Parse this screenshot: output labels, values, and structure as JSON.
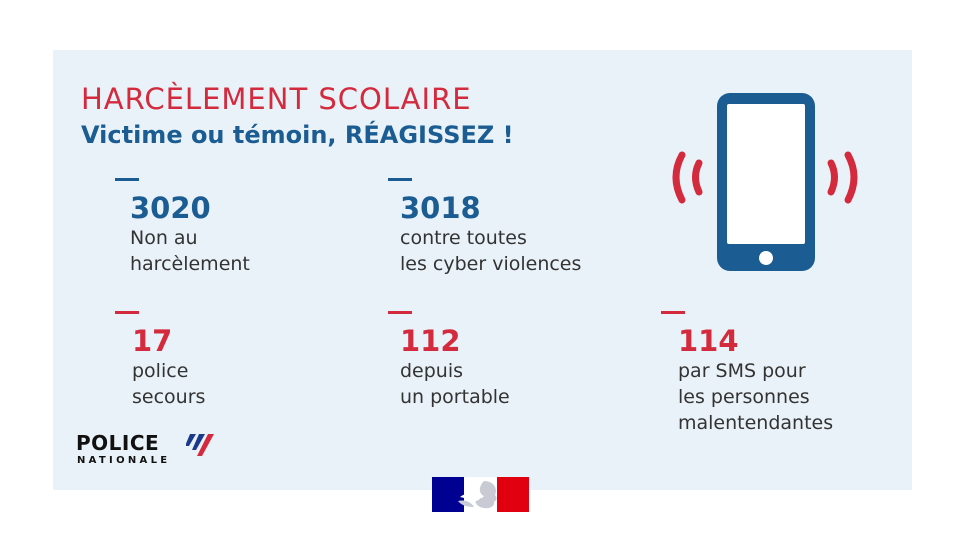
{
  "header": {
    "title": "HARCÈLEMENT SCOLAIRE",
    "subtitle": "Victime ou témoin, RÉAGISSEZ !"
  },
  "numbers": [
    {
      "number": "3020",
      "lines": [
        "Non au",
        "harcèlement"
      ],
      "color": "#1b5c92"
    },
    {
      "number": "3018",
      "lines": [
        "contre toutes",
        "les cyber violences"
      ],
      "color": "#1b5c92"
    },
    {
      "number": "17",
      "lines": [
        "police",
        "secours"
      ],
      "color": "#d42a3e"
    },
    {
      "number": "112",
      "lines": [
        "depuis",
        "un portable"
      ],
      "color": "#d42a3e"
    },
    {
      "number": "114",
      "lines": [
        "par SMS pour",
        "les personnes",
        "malentendantes"
      ],
      "color": "#d42a3e"
    }
  ],
  "logo": {
    "name": "POLICE",
    "subtitle": "NATIONALE"
  },
  "icons": {
    "phone": "vibrating-phone-icon",
    "logo": "police-nationale-logo",
    "marianne": "marianne-logo"
  },
  "colors": {
    "background": "#e9f2f8",
    "blue": "#1b5c92",
    "red": "#d42a3e",
    "flag_blue": "#000091",
    "flag_red": "#e1000f"
  }
}
